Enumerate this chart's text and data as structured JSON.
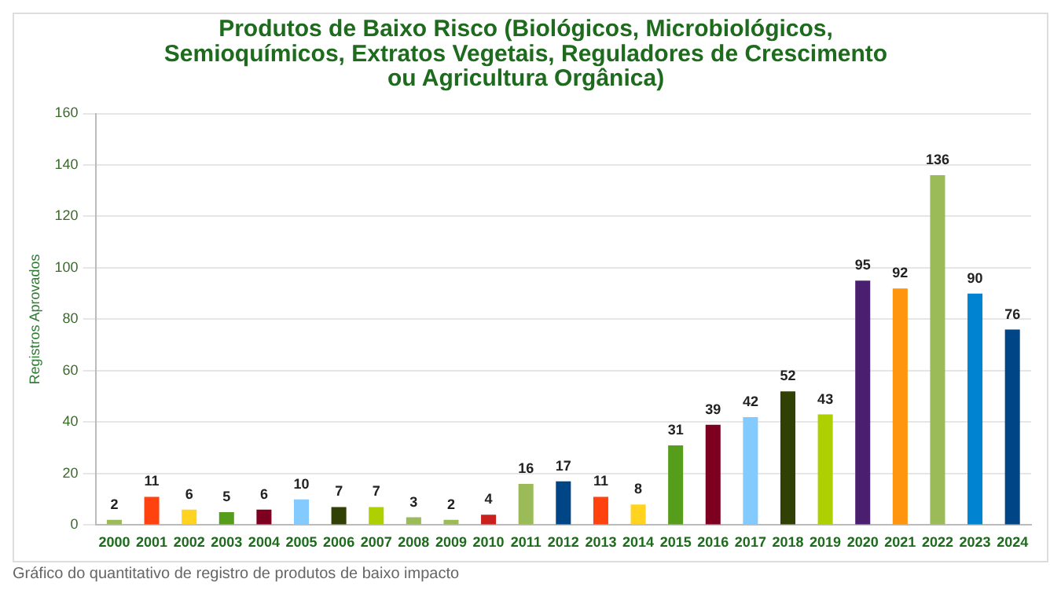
{
  "chart_data": {
    "type": "bar",
    "title": "Produtos de Baixo Risco (Biológicos, Microbiológicos, Semioquímicos, Extratos Vegetais, Reguladores de Crescimento ou Agricultura Orgânica)",
    "ylabel": "Registros Aprovados",
    "categories": [
      "2000",
      "2001",
      "2002",
      "2003",
      "2004",
      "2005",
      "2006",
      "2007",
      "2008",
      "2009",
      "2010",
      "2011",
      "2012",
      "2013",
      "2014",
      "2015",
      "2016",
      "2017",
      "2018",
      "2019",
      "2020",
      "2021",
      "2022",
      "2023",
      "2024"
    ],
    "values": [
      2,
      11,
      6,
      5,
      6,
      10,
      7,
      7,
      3,
      2,
      4,
      16,
      17,
      11,
      8,
      31,
      39,
      42,
      52,
      43,
      95,
      92,
      136,
      90,
      76
    ],
    "colors": [
      "#9bbb59",
      "#ff420e",
      "#ffd320",
      "#579d1c",
      "#7e0021",
      "#83caff",
      "#314004",
      "#aecf00",
      "#9bbb59",
      "#9bbb59",
      "#c9211e",
      "#9bbb59",
      "#004586",
      "#ff420e",
      "#ffd320",
      "#579d1c",
      "#7e0021",
      "#83caff",
      "#314004",
      "#aecf00",
      "#4b1f6f",
      "#ff950e",
      "#9bbb59",
      "#0084d1",
      "#004586"
    ],
    "ylim": [
      0,
      160
    ],
    "yticks": [
      0,
      20,
      40,
      60,
      80,
      100,
      120,
      140,
      160
    ],
    "grid": "y",
    "legend": false,
    "data_labels": true,
    "annotations": [
      "Gráfico do quantitativo de registro de produtos de baixo impacto"
    ]
  }
}
